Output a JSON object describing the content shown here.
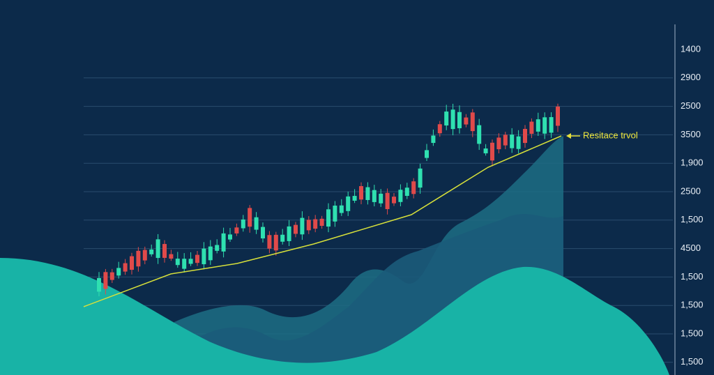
{
  "axis_labels": [
    "1400",
    "2900",
    "2500",
    "3500",
    "1,900",
    "2500",
    "1,500",
    "4500",
    "1,500",
    "1,500",
    "1,500",
    "1,500"
  ],
  "annotation": "Resitace trvol"
}
